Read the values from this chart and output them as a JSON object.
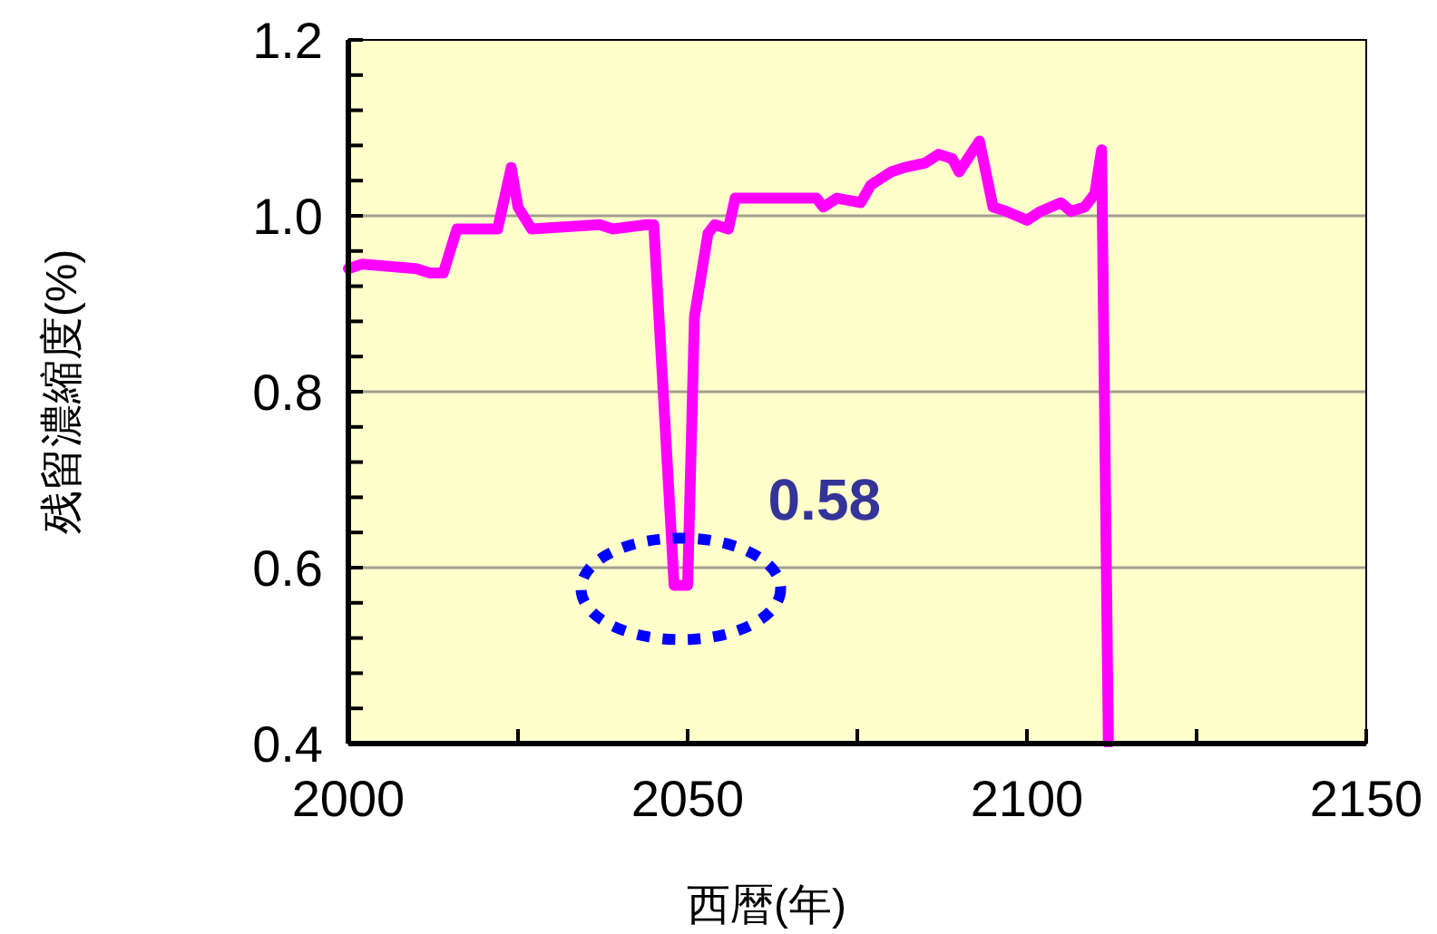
{
  "chart_data": {
    "type": "line",
    "xlabel": "西暦(年)",
    "ylabel": "残留濃縮度(%)",
    "xlim": [
      2000,
      2150
    ],
    "ylim": [
      0.4,
      1.2
    ],
    "xticks": [
      2000,
      {
        "value": 2025,
        "label": null
      },
      2050,
      {
        "value": 2075,
        "label": null
      },
      2100,
      {
        "value": 2125,
        "label": null
      },
      2150
    ],
    "yticks": [
      0.4,
      {
        "value": 0.44,
        "label": null
      },
      {
        "value": 0.48,
        "label": null
      },
      {
        "value": 0.52,
        "label": null
      },
      {
        "value": 0.56,
        "label": null
      },
      0.6,
      {
        "value": 0.64,
        "label": null
      },
      {
        "value": 0.68,
        "label": null
      },
      {
        "value": 0.72,
        "label": null
      },
      {
        "value": 0.76,
        "label": null
      },
      0.8,
      {
        "value": 0.84,
        "label": null
      },
      {
        "value": 0.88,
        "label": null
      },
      {
        "value": 0.92,
        "label": null
      },
      {
        "value": 0.96,
        "label": null
      },
      {
        "value": 1,
        "label": "1.0"
      },
      {
        "value": 1.04,
        "label": null
      },
      {
        "value": 1.08,
        "label": null
      },
      {
        "value": 1.12,
        "label": null
      },
      {
        "value": 1.16,
        "label": null
      },
      1.2
    ],
    "grid": "y",
    "marker": "none",
    "line_style": "solid",
    "annotations": [
      {
        "text": "0.58",
        "x": 2049,
        "y": 0.58
      }
    ],
    "series": [
      {
        "color": "#ff00ff",
        "x": [
          2000,
          2002,
          2010,
          2012,
          2014,
          2016,
          2022,
          2024,
          2025,
          2027,
          2037,
          2039,
          2044,
          2045,
          2047.5,
          2048,
          2050,
          2051,
          2053,
          2054,
          2056,
          2057,
          2069,
          2070,
          2072,
          2075.5,
          2077,
          2080,
          2082,
          2085,
          2087,
          2089,
          2090,
          2093,
          2095,
          2097,
          2100,
          2102,
          2105,
          2106.5,
          2108.5,
          2110,
          2111,
          2112
        ],
        "values": [
          0.94,
          0.945,
          0.94,
          0.935,
          0.935,
          0.985,
          0.985,
          1.055,
          1.01,
          0.985,
          0.99,
          0.985,
          0.99,
          0.99,
          0.65,
          0.58,
          0.58,
          0.885,
          0.98,
          0.99,
          0.985,
          1.02,
          1.02,
          1.01,
          1.02,
          1.015,
          1.035,
          1.05,
          1.055,
          1.06,
          1.07,
          1.065,
          1.05,
          1.085,
          1.01,
          1.005,
          0.995,
          1.005,
          1.015,
          1.005,
          1.01,
          1.025,
          1.075,
          0.4
        ]
      }
    ]
  }
}
